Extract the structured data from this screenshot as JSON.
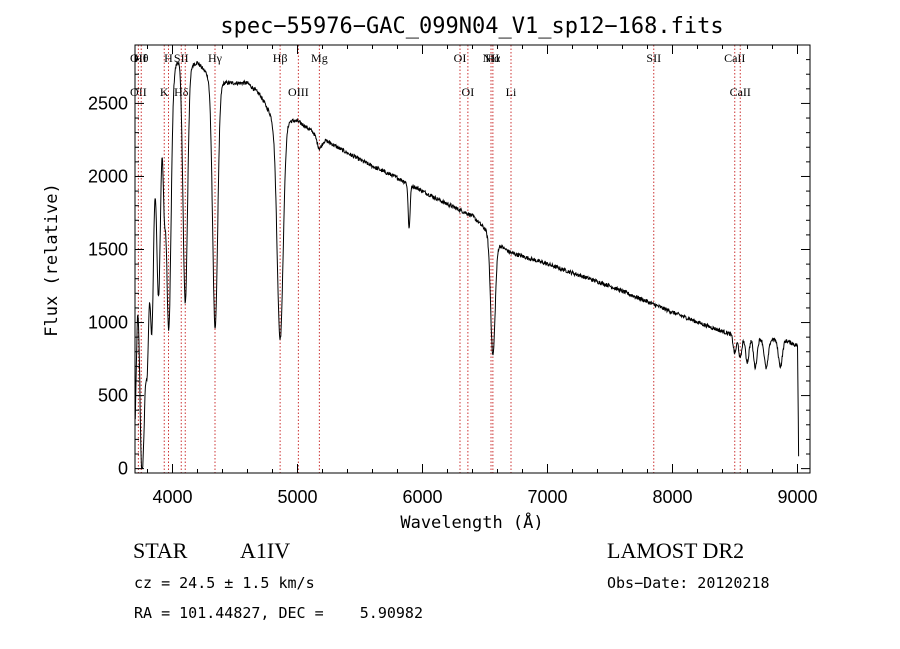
{
  "chart_data": {
    "type": "line",
    "title": "spec−55976−GAC_099N04_V1_sp12−168.fits",
    "xlabel": "Wavelength (Å)",
    "ylabel": "Flux (relative)",
    "xlim": [
      3700,
      9100
    ],
    "ylim": [
      -30,
      2900
    ],
    "xticks": [
      4000,
      5000,
      6000,
      7000,
      8000,
      9000
    ],
    "yticks": [
      0,
      500,
      1000,
      1500,
      2000,
      2500
    ],
    "continuum": [
      [
        3700,
        250
      ],
      [
        3720,
        1100
      ],
      [
        3760,
        1500
      ],
      [
        3800,
        1800
      ],
      [
        3850,
        2150
      ],
      [
        3900,
        2450
      ],
      [
        3950,
        2600
      ],
      [
        4000,
        2720
      ],
      [
        4050,
        2800
      ],
      [
        4100,
        2790
      ],
      [
        4150,
        2760
      ],
      [
        4200,
        2780
      ],
      [
        4250,
        2730
      ],
      [
        4300,
        2680
      ],
      [
        4400,
        2640
      ],
      [
        4500,
        2640
      ],
      [
        4600,
        2640
      ],
      [
        4700,
        2560
      ],
      [
        4800,
        2400
      ],
      [
        4900,
        2380
      ],
      [
        5000,
        2380
      ],
      [
        5200,
        2260
      ],
      [
        5400,
        2160
      ],
      [
        5600,
        2070
      ],
      [
        5800,
        1990
      ],
      [
        6000,
        1900
      ],
      [
        6200,
        1810
      ],
      [
        6400,
        1730
      ],
      [
        6500,
        1640
      ],
      [
        6600,
        1540
      ],
      [
        6700,
        1480
      ],
      [
        7000,
        1400
      ],
      [
        7500,
        1250
      ],
      [
        8000,
        1070
      ],
      [
        8300,
        970
      ],
      [
        8500,
        910
      ],
      [
        8700,
        890
      ],
      [
        8900,
        880
      ],
      [
        9000,
        840
      ],
      [
        9010,
        0
      ]
    ],
    "absorption_features": [
      {
        "center": 3750,
        "depth": 1100,
        "width": 12
      },
      {
        "center": 3770,
        "depth": 1000,
        "width": 12
      },
      {
        "center": 3798,
        "depth": 1050,
        "width": 13
      },
      {
        "center": 3835,
        "depth": 1100,
        "width": 13
      },
      {
        "center": 3889,
        "depth": 1200,
        "width": 15
      },
      {
        "center": 3934,
        "depth": 600,
        "width": 10
      },
      {
        "center": 3970,
        "depth": 1700,
        "width": 18
      },
      {
        "center": 4102,
        "depth": 1650,
        "width": 18
      },
      {
        "center": 4341,
        "depth": 1700,
        "width": 20
      },
      {
        "center": 4861,
        "depth": 1500,
        "width": 24
      },
      {
        "center": 5175,
        "depth": 80,
        "width": 20
      },
      {
        "center": 5893,
        "depth": 300,
        "width": 8
      },
      {
        "center": 6563,
        "depth": 800,
        "width": 18
      },
      {
        "center": 8498,
        "depth": 120,
        "width": 12
      },
      {
        "center": 8542,
        "depth": 150,
        "width": 12
      },
      {
        "center": 8598,
        "depth": 170,
        "width": 14
      },
      {
        "center": 8662,
        "depth": 200,
        "width": 14
      },
      {
        "center": 8750,
        "depth": 200,
        "width": 16
      },
      {
        "center": 8863,
        "depth": 180,
        "width": 16
      }
    ],
    "noise_amplitude": 14,
    "lines": [
      {
        "wave": 3727,
        "upper": "OII",
        "lower": "OII"
      },
      {
        "wave": 3750,
        "upper": "Hθ",
        "lower": ""
      },
      {
        "wave": 3934,
        "upper": "",
        "lower": "K"
      },
      {
        "wave": 3968,
        "upper": "H",
        "lower": ""
      },
      {
        "wave": 4070,
        "upper": "SII",
        "lower": "Hδ"
      },
      {
        "wave": 4102,
        "upper": "",
        "lower": ""
      },
      {
        "wave": 4340,
        "upper": "Hγ",
        "lower": ""
      },
      {
        "wave": 4861,
        "upper": "Hβ",
        "lower": ""
      },
      {
        "wave": 5007,
        "upper": "",
        "lower": "OIII"
      },
      {
        "wave": 5175,
        "upper": "Mg",
        "lower": ""
      },
      {
        "wave": 6300,
        "upper": "OI",
        "lower": ""
      },
      {
        "wave": 6363,
        "upper": "",
        "lower": "OI"
      },
      {
        "wave": 6548,
        "upper": "NII",
        "lower": ""
      },
      {
        "wave": 6563,
        "upper": "Hα",
        "lower": ""
      },
      {
        "wave": 6708,
        "upper": "",
        "lower": "Li"
      },
      {
        "wave": 7850,
        "upper": "SII",
        "lower": ""
      },
      {
        "wave": 8498,
        "upper": "CaII",
        "lower": ""
      },
      {
        "wave": 8542,
        "upper": "",
        "lower": "CaII"
      }
    ]
  },
  "info": {
    "object_class": "STAR",
    "subclass": "A1IV",
    "survey": "LAMOST DR2",
    "cz": "cz = 24.5 ± 1.5 km/s",
    "obs_date": "Obs−Date: 20120218",
    "coords": "RA = 101.44827, DEC =    5.90982"
  },
  "colors": {
    "spectrum": "#000000",
    "line_markers": "#cc3333",
    "axes": "#000000"
  }
}
